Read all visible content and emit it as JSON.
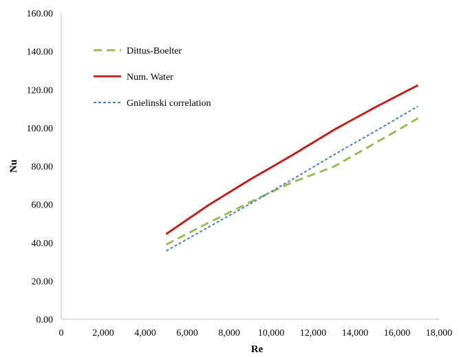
{
  "chart_data": {
    "type": "line",
    "title": "",
    "xlabel": "Re",
    "ylabel": "Nu",
    "xlim": [
      0,
      18000
    ],
    "ylim": [
      0,
      160
    ],
    "xticks": [
      "0",
      "2,000",
      "4,000",
      "6,000",
      "8,000",
      "10,000",
      "12,000",
      "14,000",
      "16,000",
      "18,000"
    ],
    "yticks": [
      "0.00",
      "20.00",
      "40.00",
      "60.00",
      "80.00",
      "100.00",
      "120.00",
      "140.00",
      "160.00"
    ],
    "grid": false,
    "legend_position": "top-left",
    "series": [
      {
        "name": "Dittus-Boelter",
        "color": "#9bbb59",
        "style": "long-dash",
        "x": [
          5000,
          7000,
          9000,
          11000,
          13000,
          15000,
          17000
        ],
        "y": [
          39.0,
          50.3,
          61.2,
          71.5,
          79.8,
          92.3,
          105.0
        ]
      },
      {
        "name": "Num. Water",
        "color": "#c0201f",
        "style": "solid",
        "x": [
          5000,
          7000,
          9000,
          11000,
          13000,
          15000,
          17000
        ],
        "y": [
          44.5,
          59.5,
          73.0,
          85.7,
          99.0,
          111.0,
          122.3
        ]
      },
      {
        "name": "Gnielinski correlation",
        "color": "#4a7ebb",
        "style": "short-dash",
        "x": [
          5000,
          7000,
          9000,
          11000,
          13000,
          15000,
          17000
        ],
        "y": [
          35.7,
          48.0,
          60.3,
          73.0,
          86.0,
          98.5,
          111.3
        ]
      }
    ]
  }
}
